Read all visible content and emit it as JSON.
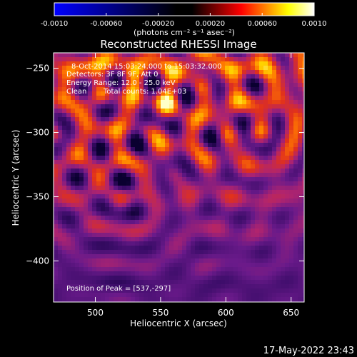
{
  "colorbar": {
    "ticks": [
      "-0.0010",
      "-0.00060",
      "-0.00020",
      "0.00020",
      "0.00060",
      "0.0010"
    ],
    "tick_values": [
      -0.001,
      -0.0006,
      -0.0002,
      0.0002,
      0.0006,
      0.001
    ],
    "range": [
      -0.001,
      0.001
    ],
    "units": "(photons cm⁻² s⁻¹ asec⁻²)",
    "colors": [
      "#0000ff",
      "#000000",
      "#ff0000",
      "#ffff00",
      "#ffffff"
    ]
  },
  "chart_data": {
    "type": "heatmap",
    "title": "Reconstructed RHESSI Image",
    "xlabel": "Heliocentric X (arcsec)",
    "ylabel": "Heliocentric Y (arcsec)",
    "xlim": [
      468,
      660
    ],
    "ylim": [
      -432,
      -238
    ],
    "xticks": [
      500,
      550,
      600,
      650
    ],
    "yticks": [
      -250,
      -300,
      -350,
      -400
    ],
    "xtick_labels": [
      "500",
      "550",
      "600",
      "650"
    ],
    "ytick_labels": [
      "−250",
      "−300",
      "−350",
      "−400"
    ],
    "peak": [
      537,
      -297
    ],
    "annotations": {
      "time": "8-Oct-2014 15:03:24.000 to 15:03:32.000",
      "detectors": "Detectors: 3F 8F 9F, Att 0",
      "energy": "Energy Range: 12.0 - 25.0 keV",
      "method": "Clean",
      "counts": "Total counts: 1.04E+03",
      "peak_label": "Position of Peak = [537,-297]"
    },
    "colormap": [
      "#0a0030",
      "#3a0c68",
      "#6a1a8a",
      "#b0246e",
      "#e0301c",
      "#ff7800",
      "#ffd200",
      "#ffffc8"
    ]
  },
  "footer": {
    "timestamp": "17-May-2022 23:43"
  }
}
